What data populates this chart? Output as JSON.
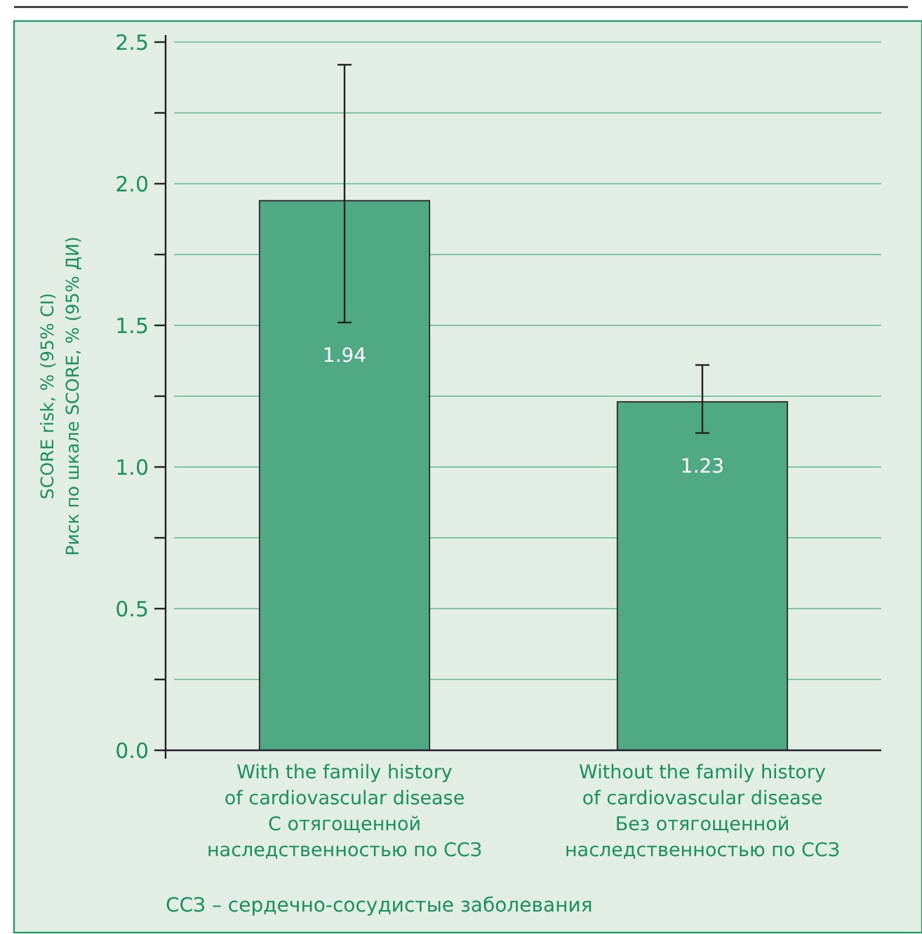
{
  "chart_data": {
    "type": "bar",
    "ylabel": "SCORE risk, % (95% CI)\nРиск по шкале SCORE, % (95% ДИ)",
    "categories": [
      "With the family history\nof cardiovascular disease\nС отягощенной\nнаследственностью по ССЗ",
      "Without the family history\nof cardiovascular disease\nБез отягощенной\nнаследственностью по ССЗ"
    ],
    "values": [
      1.94,
      1.23
    ],
    "errors": [
      [
        1.51,
        2.42
      ],
      [
        1.12,
        1.36
      ]
    ],
    "color": "#4fa984",
    "data_labels": true,
    "ylim": [
      0,
      2.5
    ],
    "yticks": [
      {
        "value": 0,
        "label": "0.0"
      },
      {
        "value": 0.25,
        "label": null
      },
      {
        "value": 0.5,
        "label": "0.5"
      },
      {
        "value": 0.75,
        "label": null
      },
      {
        "value": 1,
        "label": "1.0"
      },
      {
        "value": 1.25,
        "label": null
      },
      {
        "value": 1.5,
        "label": "1.5"
      },
      {
        "value": 1.75,
        "label": null
      },
      {
        "value": 2,
        "label": "2.0"
      },
      {
        "value": 2.25,
        "label": null
      },
      {
        "value": 2.5,
        "label": "2.5"
      }
    ],
    "grid": "y",
    "annotations": [
      "ССЗ – сердечно-сосудистые заболевания"
    ]
  }
}
